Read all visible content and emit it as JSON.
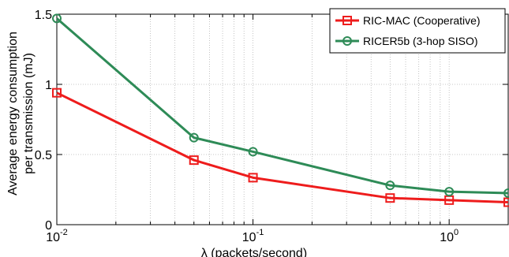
{
  "chart_data": {
    "type": "line",
    "xscale": "log",
    "xlim": [
      0.01,
      2
    ],
    "ylim": [
      0,
      1.5
    ],
    "grid": true,
    "xlabel": "λ (packets/second)",
    "ylabel_line1": "Average energy consumption",
    "ylabel_line2": "per transmission (mJ)",
    "y_ticks": [
      "0",
      "0.5",
      "1",
      "1.5"
    ],
    "y_tick_values": [
      0,
      0.5,
      1,
      1.5
    ],
    "x_tick_values": [
      0.01,
      0.1,
      1
    ],
    "x_tick_labels": [
      {
        "base": "10",
        "exp": "-2"
      },
      {
        "base": "10",
        "exp": "-1"
      },
      {
        "base": "10",
        "exp": "0"
      }
    ],
    "legend_position": "top-right",
    "series": [
      {
        "name": "RIC-MAC (Cooperative)",
        "color": "#ee1c1c",
        "marker": "square",
        "x": [
          0.01,
          0.05,
          0.1,
          0.5,
          1,
          2
        ],
        "y": [
          0.94,
          0.46,
          0.335,
          0.19,
          0.175,
          0.16
        ]
      },
      {
        "name": "RICER5b (3-hop SISO)",
        "color": "#2e8b57",
        "marker": "circle",
        "x": [
          0.01,
          0.05,
          0.1,
          0.5,
          1,
          2
        ],
        "y": [
          1.47,
          0.62,
          0.52,
          0.28,
          0.235,
          0.225
        ]
      }
    ]
  }
}
